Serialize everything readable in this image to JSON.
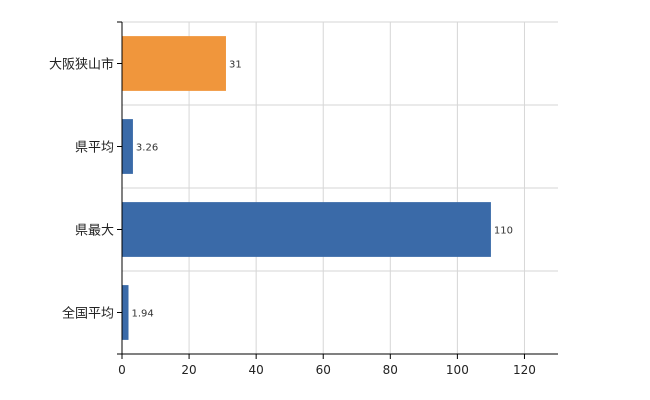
{
  "chart_data": {
    "type": "bar",
    "orientation": "horizontal",
    "categories": [
      "大阪狭山市",
      "県平均",
      "県最大",
      "全国平均"
    ],
    "values": [
      31,
      3.26,
      110,
      1.94
    ],
    "data_labels": [
      "31",
      "3.26",
      "110",
      "1.94"
    ],
    "bar_colors": [
      "#f0963c",
      "#3a6aa8",
      "#3a6aa8",
      "#3a6aa8"
    ],
    "xlim": [
      0,
      130
    ],
    "x_ticks": [
      0,
      20,
      40,
      60,
      80,
      100,
      120
    ],
    "grid": true,
    "legend": "none",
    "title": "",
    "xlabel": "",
    "ylabel": ""
  }
}
